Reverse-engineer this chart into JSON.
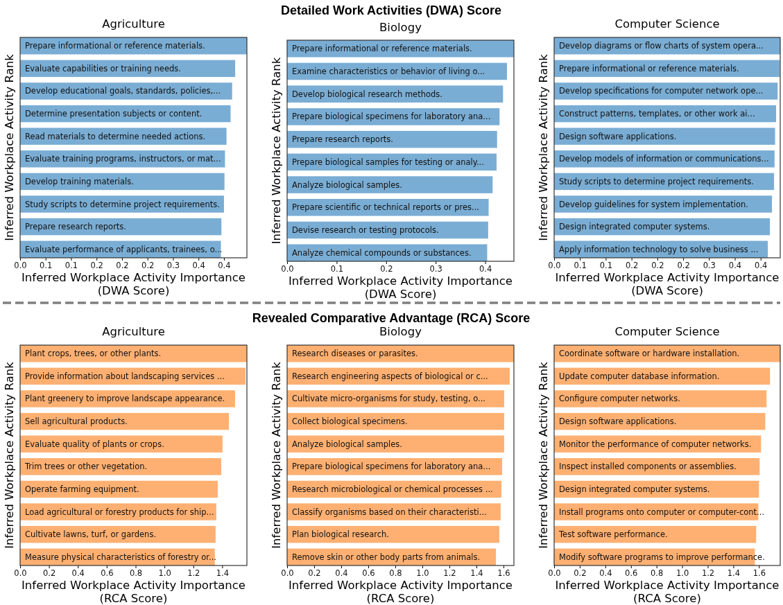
{
  "chart_data": [
    {
      "type": "bar",
      "orientation": "horizontal",
      "title": "Agriculture",
      "annotations": [
        "Detailed Work Activities (DWA) Score"
      ],
      "xlabel": "Inferred Workplace Activity Importance\n(DWA Score)",
      "ylabel": "Inferred Workplace Activity Rank",
      "color": "#7aadd4",
      "categories": [
        "Prepare informational or reference materials.",
        "Evaluate capabilities or training needs.",
        "Develop educational goals, standards, policies,...",
        "Determine presentation subjects or content.",
        "Read materials to determine needed actions.",
        "Evaluate training programs, instructors, or mat...",
        "Develop training materials.",
        "Study scripts to determine project requirements.",
        "Prepare research reports.",
        "Evaluate performance of applicants, trainees, o..."
      ],
      "values": [
        0.445,
        0.422,
        0.416,
        0.413,
        0.405,
        0.402,
        0.401,
        0.4,
        0.395,
        0.394
      ],
      "xlim": [
        0,
        0.445
      ],
      "xticks": [
        {
          "value": 0,
          "label": "0.0"
        },
        {
          "value": 0.05,
          "label": "0.1"
        },
        0.1,
        {
          "value": 0.15,
          "label": "0.2"
        },
        0.2,
        {
          "value": 0.25,
          "label": "0.2"
        },
        0.3,
        {
          "value": 0.35,
          "label": "0.4"
        },
        0.4
      ]
    },
    {
      "type": "bar",
      "orientation": "horizontal",
      "title": "Biology",
      "xlabel": "Inferred Workplace Activity Importance\n(DWA Score)",
      "ylabel": "Inferred Workplace Activity Rank",
      "color": "#7aadd4",
      "categories": [
        "Prepare informational or reference materials.",
        "Examine characteristics or behavior of living o...",
        "Develop biological research methods.",
        "Prepare biological specimens for laboratory ana...",
        "Prepare research reports.",
        "Prepare biological samples for testing or analy...",
        "Analyze biological samples.",
        "Prepare scientific or technical reports or pres...",
        "Devise research or testing protocols.",
        "Analyze chemical compounds or substances."
      ],
      "values": [
        0.458,
        0.444,
        0.436,
        0.429,
        0.424,
        0.423,
        0.415,
        0.407,
        0.406,
        0.404
      ],
      "xlim": [
        0,
        0.458
      ],
      "xticks": [
        {
          "value": 0,
          "label": "0.0"
        },
        0.1,
        0.2,
        0.3,
        0.4
      ]
    },
    {
      "type": "bar",
      "orientation": "horizontal",
      "title": "Computer Science",
      "xlabel": "Inferred Workplace Activity Importance\n(DWA Score)",
      "ylabel": "Inferred Workplace Activity Rank",
      "color": "#7aadd4",
      "categories": [
        "Develop diagrams or flow charts of system opera...",
        "Prepare informational or reference materials.",
        "Develop specifications for computer network ope...",
        "Construct patterns, templates, or other work ai...",
        "Design software applications.",
        "Develop models of information or communications...",
        "Study scripts to determine project requirements.",
        "Develop guidelines for system implementation.",
        "Design integrated computer systems.",
        "Apply information technology to solve business ..."
      ],
      "values": [
        0.438,
        0.437,
        0.433,
        0.43,
        0.428,
        0.427,
        0.426,
        0.422,
        0.418,
        0.414
      ],
      "xlim": [
        0,
        0.438
      ],
      "xticks": [
        {
          "value": 0,
          "label": "0.0"
        },
        {
          "value": 0.05,
          "label": "0.1"
        },
        0.1,
        {
          "value": 0.15,
          "label": "0.2"
        },
        0.2,
        {
          "value": 0.25,
          "label": "0.2"
        },
        0.3,
        {
          "value": 0.35,
          "label": "0.4"
        },
        0.4
      ]
    },
    {
      "type": "bar",
      "orientation": "horizontal",
      "title": "Agriculture",
      "annotations": [
        "Revealed Comparative Advantage (RCA) Score"
      ],
      "xlabel": "Inferred Workplace Activity Importance\n(RCA Score)",
      "ylabel": "Inferred Workplace Activity Rank",
      "color": "#fdb072",
      "categories": [
        "Plant crops, trees, or other plants.",
        "Provide information about landscaping services ...",
        "Plant greenery to improve landscape appearance.",
        "Sell agricultural products.",
        "Evaluate quality of plants or crops.",
        "Trim trees or other vegetation.",
        "Operate farming equipment.",
        "Load agricultural or forestry products for ship...",
        "Cultivate lawns, turf, or gardens.",
        "Measure physical characteristics of forestry or..."
      ],
      "values": [
        1.571,
        1.561,
        1.489,
        1.446,
        1.402,
        1.393,
        1.369,
        1.359,
        1.354,
        1.349
      ],
      "xlim": [
        0,
        1.571
      ],
      "xticks": [
        {
          "value": 0,
          "label": "0.0"
        },
        0.2,
        0.4,
        0.6,
        0.8,
        {
          "value": 1,
          "label": "1.0"
        },
        1.2,
        1.4
      ]
    },
    {
      "type": "bar",
      "orientation": "horizontal",
      "title": "Biology",
      "xlabel": "Inferred Workplace Activity Importance\n(RCA Score)",
      "ylabel": "Inferred Workplace Activity Rank",
      "color": "#fdb072",
      "categories": [
        "Research diseases or parasites.",
        "Research engineering aspects of biological or c...",
        "Cultivate micro-organisms for study, testing, o...",
        "Collect biological specimens.",
        "Analyze biological samples.",
        "Prepare biological specimens for laboratory ana...",
        "Research microbiological or chemical processes ...",
        "Classify organisms based on their characteristi...",
        "Plan biological research.",
        "Remove skin or other body parts from animals."
      ],
      "values": [
        1.677,
        1.646,
        1.605,
        1.605,
        1.605,
        1.59,
        1.585,
        1.579,
        1.569,
        1.544
      ],
      "xlim": [
        0,
        1.677
      ],
      "xticks": [
        {
          "value": 0,
          "label": "0.0"
        },
        0.2,
        0.4,
        0.6,
        0.8,
        {
          "value": 1,
          "label": "1.0"
        },
        1.2,
        1.4,
        1.6
      ]
    },
    {
      "type": "bar",
      "orientation": "horizontal",
      "title": "Computer Science",
      "xlabel": "Inferred Workplace Activity Importance\n(RCA Score)",
      "ylabel": "Inferred Workplace Activity Rank",
      "color": "#fdb072",
      "categories": [
        "Coordinate software or hardware installation.",
        "Update computer database information.",
        "Configure computer networks.",
        "Design software applications.",
        "Monitor the performance of computer networks.",
        "Inspect installed components or assemblies.",
        "Design integrated computer systems.",
        "Install programs onto computer or computer-cont...",
        "Test software performance.",
        "Modify software programs to improve performance."
      ],
      "values": [
        1.766,
        1.686,
        1.659,
        1.649,
        1.616,
        1.605,
        1.6,
        1.595,
        1.578,
        1.568
      ],
      "xlim": [
        0,
        1.766
      ],
      "xticks": [
        {
          "value": 0,
          "label": "0.0"
        },
        0.2,
        0.4,
        0.6,
        0.8,
        {
          "value": 1,
          "label": "1.0"
        },
        1.2,
        1.4,
        1.6
      ]
    }
  ]
}
